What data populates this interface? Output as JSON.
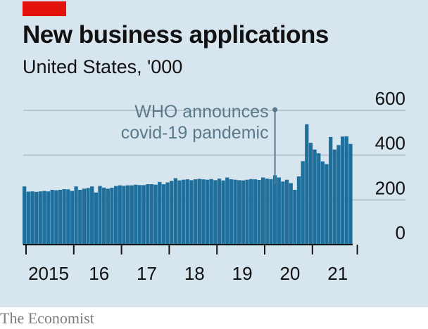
{
  "header": {
    "title": "New business applications",
    "subtitle": "United States, '000"
  },
  "footer": {
    "source": "The Economist"
  },
  "colors": {
    "background": "#d7e5ee",
    "bar": "#1f6f9c",
    "accent": "#e3120b",
    "grid": "#b5c6d1",
    "annotation": "#5a7a8c"
  },
  "chart_data": {
    "type": "bar",
    "title": "New business applications",
    "subtitle": "United States, '000",
    "ylim": [
      0,
      600
    ],
    "y_ticks": [
      0,
      200,
      400,
      600
    ],
    "x_tick_labels": [
      "2015",
      "16",
      "17",
      "18",
      "19",
      "20",
      "21"
    ],
    "grid": "horizontal",
    "annotation": {
      "lines": [
        "WHO announces",
        "covid-19 pandemic"
      ],
      "date": "2020-03"
    },
    "series": [
      {
        "start": "2014-12",
        "frequency": "monthly",
        "values": [
          260,
          237,
          238,
          236,
          238,
          240,
          238,
          245,
          243,
          245,
          248,
          247,
          240,
          260,
          245,
          250,
          253,
          260,
          233,
          262,
          255,
          250,
          254,
          262,
          265,
          263,
          265,
          265,
          268,
          266,
          266,
          270,
          270,
          268,
          280,
          270,
          278,
          285,
          297,
          287,
          290,
          292,
          288,
          292,
          294,
          292,
          290,
          293,
          288,
          295,
          287,
          300,
          292,
          290,
          288,
          287,
          290,
          293,
          292,
          289,
          300,
          295,
          293,
          310,
          300,
          282,
          290,
          275,
          245,
          305,
          373,
          538,
          455,
          425,
          408,
          372,
          360,
          481,
          425,
          445,
          483,
          484,
          450
        ]
      }
    ]
  }
}
